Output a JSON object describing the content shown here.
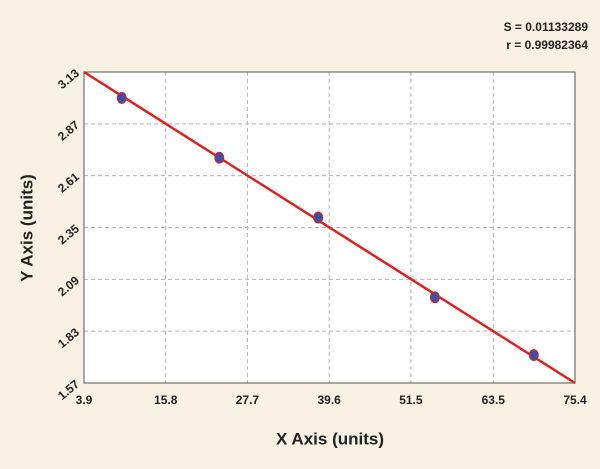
{
  "chart_data": {
    "type": "scatter",
    "annotations": [
      "S = 0.01133289",
      "r = 0.99982364"
    ],
    "x_label": "X Axis (units)",
    "y_label": "Y Axis (units)",
    "x": [
      9.4,
      23.6,
      38.0,
      55.0,
      69.4
    ],
    "values": [
      3.0,
      2.7,
      2.4,
      2.0,
      1.71
    ],
    "color": "#3d4ea3",
    "fit": {
      "x": [
        3.9,
        75.4
      ],
      "values": [
        3.13,
        1.57
      ],
      "color": "#e0201c"
    },
    "xlim": [
      3.9,
      75.4
    ],
    "xticks": [
      3.9,
      15.8,
      27.7,
      39.6,
      51.5,
      63.5,
      75.4
    ],
    "ylim": [
      1.57,
      3.13
    ],
    "yticks": [
      1.57,
      1.83,
      2.09,
      2.35,
      2.61,
      2.87,
      3.13
    ],
    "grid": true
  }
}
